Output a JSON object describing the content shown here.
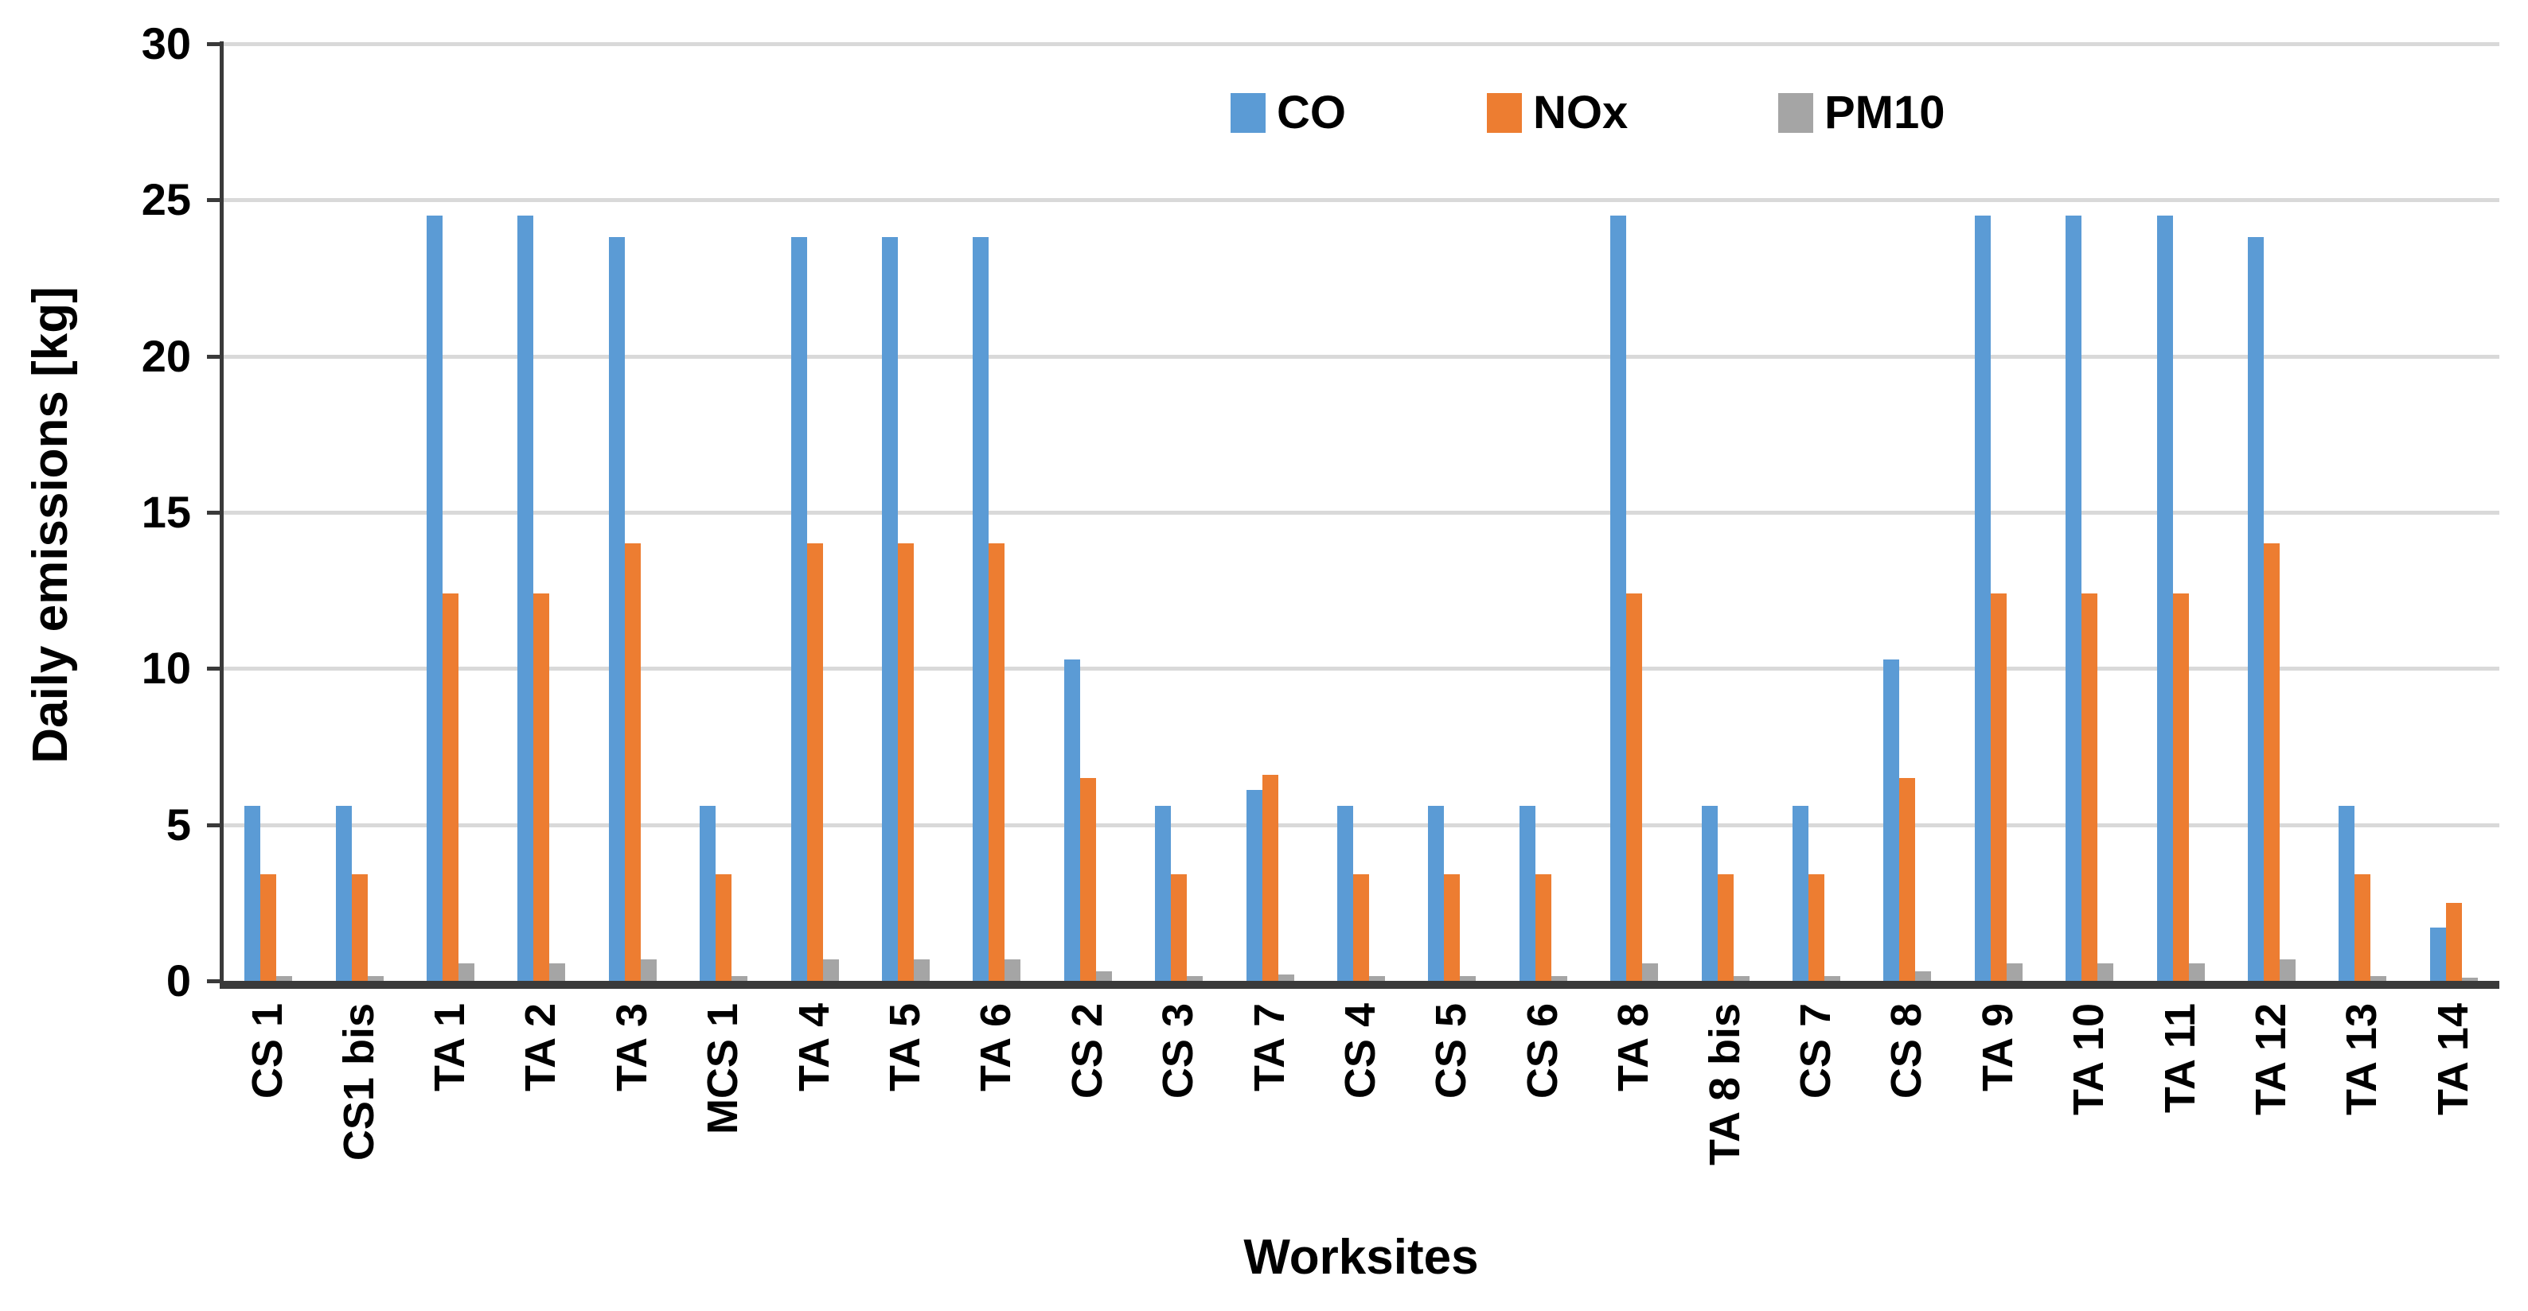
{
  "chart_data": {
    "type": "bar",
    "title": "",
    "xlabel": "Worksites",
    "ylabel": "Daily emissions [kg]",
    "ylim": [
      0,
      30
    ],
    "yticks": [
      0,
      5,
      10,
      15,
      20,
      25,
      30
    ],
    "grid": true,
    "legend_position": "top-center",
    "categories": [
      "CS 1",
      "CS1 bis",
      "TA 1",
      "TA 2",
      "TA 3",
      "MCS 1",
      "TA 4",
      "TA 5",
      "TA 6",
      "CS 2",
      "CS 3",
      "TA 7",
      "CS 4",
      "CS 5",
      "CS 6",
      "TA 8",
      "TA 8 bis",
      "CS 7",
      "CS 8",
      "TA 9",
      "TA 10",
      "TA 11",
      "TA 12",
      "TA 13",
      "TA 14"
    ],
    "series": [
      {
        "name": "CO",
        "color": "#5B9BD5",
        "values": [
          5.6,
          5.6,
          24.5,
          24.5,
          23.8,
          5.6,
          23.8,
          23.8,
          23.8,
          10.3,
          5.6,
          6.1,
          5.6,
          5.6,
          5.6,
          24.5,
          5.6,
          5.6,
          10.3,
          24.5,
          24.5,
          24.5,
          23.8,
          5.6,
          1.7
        ]
      },
      {
        "name": "NOx",
        "color": "#ED7D31",
        "values": [
          3.4,
          3.4,
          12.4,
          12.4,
          14,
          3.4,
          14,
          14,
          14,
          6.5,
          3.4,
          6.6,
          3.4,
          3.4,
          3.4,
          12.4,
          3.4,
          3.4,
          6.5,
          12.4,
          12.4,
          12.4,
          14,
          3.4,
          2.5
        ]
      },
      {
        "name": "PM10",
        "color": "#A5A5A5",
        "values": [
          0.15,
          0.15,
          0.55,
          0.55,
          0.7,
          0.15,
          0.7,
          0.7,
          0.7,
          0.3,
          0.15,
          0.2,
          0.15,
          0.15,
          0.15,
          0.55,
          0.15,
          0.15,
          0.3,
          0.55,
          0.55,
          0.55,
          0.7,
          0.15,
          0.1
        ]
      }
    ],
    "colors": {
      "gridline": "#D9D9D9",
      "axis": "#3A3A3A",
      "text": "#000000"
    }
  }
}
